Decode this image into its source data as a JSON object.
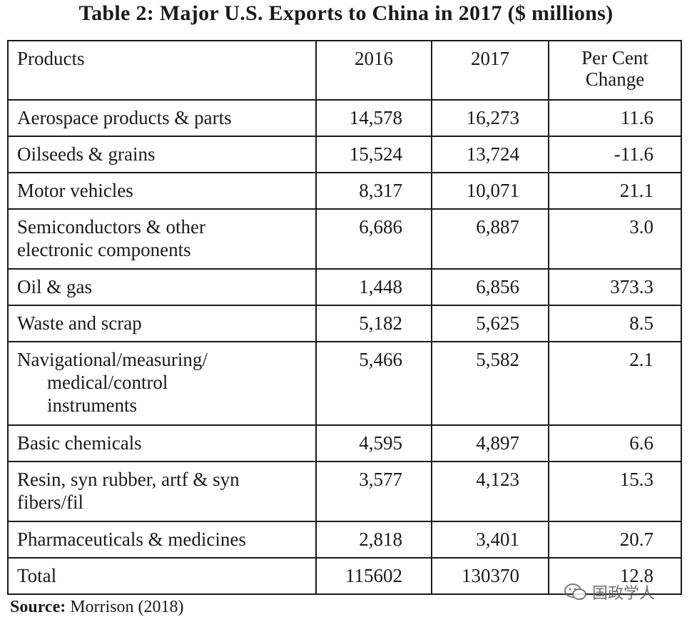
{
  "title": "Table 2: Major U.S. Exports to China in 2017 ($ millions)",
  "headers": {
    "products": "Products",
    "y2016": "2016",
    "y2017": "2017",
    "pct_line1": "Per Cent",
    "pct_line2": "Change"
  },
  "rows": [
    {
      "lines": [
        "Aerospace products & parts"
      ],
      "v2016": "14,578",
      "v2017": "16,273",
      "pct": "11.6"
    },
    {
      "lines": [
        "Oilseeds & grains"
      ],
      "v2016": "15,524",
      "v2017": "13,724",
      "pct": "-11.6"
    },
    {
      "lines": [
        "Motor vehicles"
      ],
      "v2016": "8,317",
      "v2017": "10,071",
      "pct": "21.1"
    },
    {
      "lines": [
        "Semiconductors & other",
        "electronic components"
      ],
      "v2016": "6,686",
      "v2017": "6,887",
      "pct": "3.0"
    },
    {
      "lines": [
        "Oil & gas"
      ],
      "v2016": "1,448",
      "v2017": "6,856",
      "pct": "373.3"
    },
    {
      "lines": [
        "Waste and scrap"
      ],
      "v2016": "5,182",
      "v2017": "5,625",
      "pct": "8.5"
    },
    {
      "lines": [
        "Navigational/measuring/",
        "medical/control",
        "instruments"
      ],
      "v2016": "5,466",
      "v2017": "5,582",
      "pct": "2.1"
    },
    {
      "lines": [
        "Basic chemicals"
      ],
      "v2016": "4,595",
      "v2017": "4,897",
      "pct": "6.6"
    },
    {
      "lines": [
        "Resin, syn rubber, artf & syn",
        "fibers/fil"
      ],
      "v2016": "3,577",
      "v2017": "4,123",
      "pct": "15.3"
    },
    {
      "lines": [
        "Pharmaceuticals & medicines"
      ],
      "v2016": "2,818",
      "v2017": "3,401",
      "pct": "20.7"
    },
    {
      "lines": [
        "Total"
      ],
      "v2016": "115602",
      "v2017": "130370",
      "pct": "12.8"
    }
  ],
  "source": {
    "label": "Source:",
    "text": "Morrison (2018)"
  },
  "watermark": {
    "text": "国政学人",
    "icon": "wechat-icon"
  }
}
